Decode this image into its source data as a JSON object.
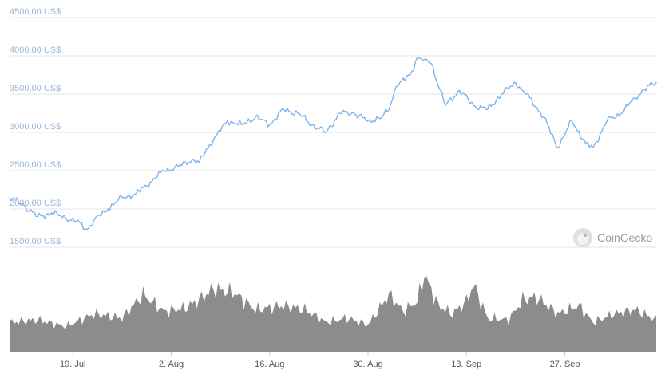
{
  "chart_data": {
    "type": "line",
    "y_axis": {
      "ticks": [
        1500,
        2000,
        2500,
        3000,
        3500,
        4000,
        4500
      ],
      "tick_labels": [
        "1500,00 US$",
        "2000,00 US$",
        "2500,00 US$",
        "3000,00 US$",
        "3500,00 US$",
        "4000,00 US$",
        "4500,00 US$"
      ],
      "ylim": [
        1500,
        4500
      ]
    },
    "x_axis": {
      "tick_labels": [
        "19. Jul",
        "2. Aug",
        "16. Aug",
        "30. Aug",
        "13. Sep",
        "27. Sep"
      ],
      "xlim": [
        "2021-07-10",
        "2021-10-10"
      ]
    },
    "grid": true,
    "series": [
      {
        "color": "#7cb5ec",
        "x": [
          "2021-07-10",
          "2021-07-12",
          "2021-07-14",
          "2021-07-16",
          "2021-07-18",
          "2021-07-20",
          "2021-07-21",
          "2021-07-22",
          "2021-07-24",
          "2021-07-26",
          "2021-07-28",
          "2021-07-30",
          "2021-08-01",
          "2021-08-03",
          "2021-08-05",
          "2021-08-06",
          "2021-08-07",
          "2021-08-08",
          "2021-08-10",
          "2021-08-12",
          "2021-08-14",
          "2021-08-16",
          "2021-08-18",
          "2021-08-20",
          "2021-08-22",
          "2021-08-24",
          "2021-08-26",
          "2021-08-28",
          "2021-08-30",
          "2021-09-01",
          "2021-09-02",
          "2021-09-03",
          "2021-09-05",
          "2021-09-06",
          "2021-09-07",
          "2021-09-08",
          "2021-09-10",
          "2021-09-12",
          "2021-09-14",
          "2021-09-16",
          "2021-09-18",
          "2021-09-20",
          "2021-09-21",
          "2021-09-22",
          "2021-09-24",
          "2021-09-26",
          "2021-09-28",
          "2021-09-30",
          "2021-10-01",
          "2021-10-03",
          "2021-10-05",
          "2021-10-07",
          "2021-10-08",
          "2021-10-10"
        ],
        "values": [
          2150,
          2050,
          1900,
          1950,
          1880,
          1820,
          1730,
          1850,
          2000,
          2150,
          2200,
          2350,
          2500,
          2550,
          2650,
          2600,
          2780,
          2900,
          3150,
          3100,
          3200,
          3100,
          3300,
          3250,
          3100,
          3000,
          3250,
          3250,
          3150,
          3200,
          3300,
          3600,
          3750,
          3980,
          3950,
          3900,
          3350,
          3550,
          3350,
          3300,
          3500,
          3650,
          3550,
          3450,
          3200,
          2800,
          3150,
          2850,
          2800,
          3150,
          3250,
          3450,
          3550,
          3650
        ]
      }
    ],
    "volume": {
      "color": "#8c8c8c",
      "x": [
        "2021-07-10",
        "2021-07-14",
        "2021-07-18",
        "2021-07-22",
        "2021-07-26",
        "2021-07-29",
        "2021-08-01",
        "2021-08-04",
        "2021-08-06",
        "2021-08-08",
        "2021-08-11",
        "2021-08-14",
        "2021-08-18",
        "2021-08-21",
        "2021-08-24",
        "2021-08-27",
        "2021-08-30",
        "2021-09-02",
        "2021-09-04",
        "2021-09-06",
        "2021-09-07",
        "2021-09-09",
        "2021-09-11",
        "2021-09-13",
        "2021-09-14",
        "2021-09-16",
        "2021-09-19",
        "2021-09-21",
        "2021-09-23",
        "2021-09-26",
        "2021-09-29",
        "2021-10-01",
        "2021-10-04",
        "2021-10-07",
        "2021-10-10"
      ],
      "values": [
        0.35,
        0.38,
        0.3,
        0.45,
        0.4,
        0.68,
        0.48,
        0.52,
        0.62,
        0.75,
        0.7,
        0.5,
        0.55,
        0.5,
        0.35,
        0.4,
        0.32,
        0.68,
        0.48,
        0.6,
        0.92,
        0.55,
        0.45,
        0.6,
        0.8,
        0.4,
        0.38,
        0.62,
        0.65,
        0.45,
        0.55,
        0.35,
        0.45,
        0.5,
        0.38
      ]
    }
  },
  "watermark": {
    "text": "CoinGecko",
    "icon": "gecko-logo-icon"
  }
}
